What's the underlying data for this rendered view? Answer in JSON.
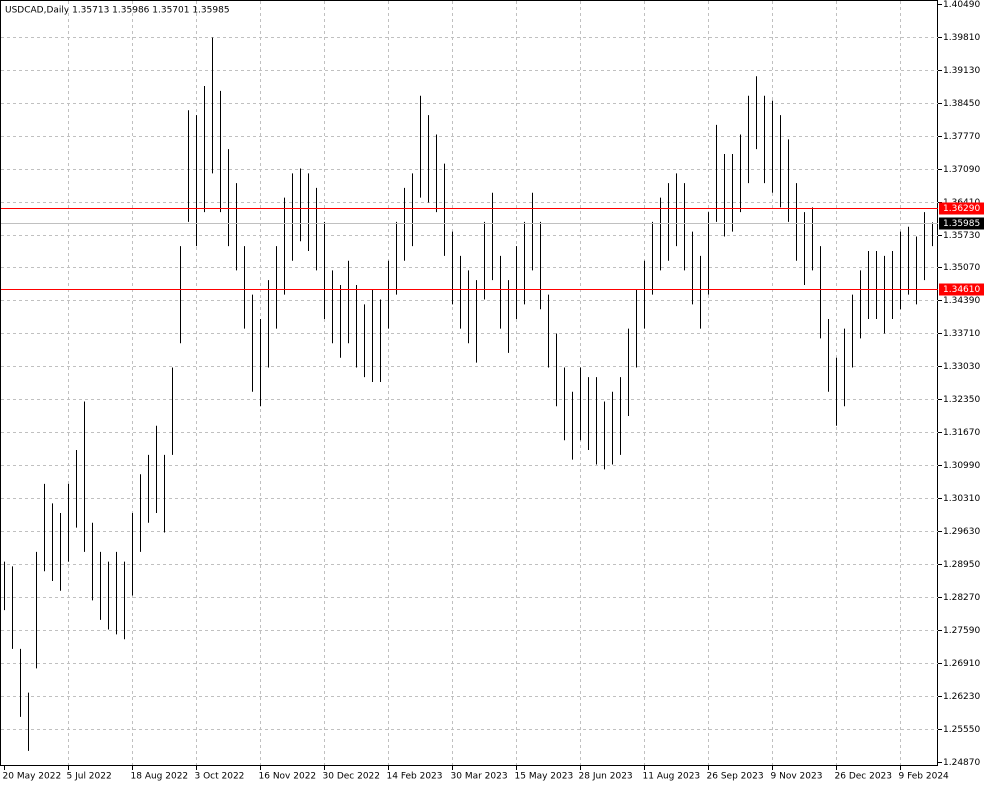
{
  "chart_data": {
    "type": "ohlc",
    "title": "USDCAD,Daily  1.35713 1.35986 1.35701 1.35985",
    "color": "#000000",
    "grid": true,
    "ylim": [
      1.2487,
      1.4049
    ],
    "yticks": [
      {
        "value": 1.4049,
        "label": "1.40490"
      },
      {
        "value": 1.3981,
        "label": "1.39810"
      },
      {
        "value": 1.3913,
        "label": "1.39130"
      },
      {
        "value": 1.3845,
        "label": "1.38450"
      },
      {
        "value": 1.3777,
        "label": "1.37770"
      },
      {
        "value": 1.3709,
        "label": "1.37090"
      },
      {
        "value": 1.3641,
        "label": "1.36410"
      },
      {
        "value": 1.3573,
        "label": "1.35730"
      },
      {
        "value": 1.3507,
        "label": "1.35070"
      },
      {
        "value": 1.3439,
        "label": "1.34390"
      },
      {
        "value": 1.3371,
        "label": "1.33710"
      },
      {
        "value": 1.3303,
        "label": "1.33030"
      },
      {
        "value": 1.3235,
        "label": "1.32350"
      },
      {
        "value": 1.3167,
        "label": "1.31670"
      },
      {
        "value": 1.3099,
        "label": "1.30990"
      },
      {
        "value": 1.3031,
        "label": "1.30310"
      },
      {
        "value": 1.2963,
        "label": "1.29630"
      },
      {
        "value": 1.2895,
        "label": "1.28950"
      },
      {
        "value": 1.2827,
        "label": "1.28270"
      },
      {
        "value": 1.2759,
        "label": "1.27590"
      },
      {
        "value": 1.2691,
        "label": "1.26910"
      },
      {
        "value": 1.2623,
        "label": "1.26230"
      },
      {
        "value": 1.2555,
        "label": "1.25550"
      },
      {
        "value": 1.2487,
        "label": "1.24870"
      }
    ],
    "levels": [
      {
        "value": 1.3629,
        "label": "1.36290",
        "color": "#ff0000"
      },
      {
        "value": 1.3461,
        "label": "1.34610",
        "color": "#ff0000"
      }
    ],
    "last": {
      "value": 1.35985,
      "label": "1.35985",
      "color": "#000000"
    },
    "categories": [
      "20 May 2022",
      null,
      null,
      null,
      null,
      null,
      null,
      null,
      "5 Jul 2022",
      null,
      null,
      null,
      null,
      null,
      null,
      null,
      "18 Aug 2022",
      null,
      null,
      null,
      null,
      null,
      null,
      null,
      "3 Oct 2022",
      null,
      null,
      null,
      null,
      null,
      null,
      null,
      "16 Nov 2022",
      null,
      null,
      null,
      null,
      null,
      null,
      null,
      "30 Dec 2022",
      null,
      null,
      null,
      null,
      null,
      null,
      null,
      "14 Feb 2023",
      null,
      null,
      null,
      null,
      null,
      null,
      null,
      "30 Mar 2023",
      null,
      null,
      null,
      null,
      null,
      null,
      null,
      "15 May 2023",
      null,
      null,
      null,
      null,
      null,
      null,
      null,
      "28 Jun 2023",
      null,
      null,
      null,
      null,
      null,
      null,
      null,
      "11 Aug 2023",
      null,
      null,
      null,
      null,
      null,
      null,
      null,
      "26 Sep 2023",
      null,
      null,
      null,
      null,
      null,
      null,
      null,
      "9 Nov 2023",
      null,
      null,
      null,
      null,
      null,
      null,
      null,
      "26 Dec 2023",
      null,
      null,
      null,
      null,
      null,
      null,
      null,
      "9 Feb 2024",
      null,
      null,
      null,
      null
    ],
    "high": [
      1.29,
      1.289,
      1.272,
      1.263,
      1.292,
      1.306,
      1.302,
      1.3,
      1.306,
      1.313,
      1.323,
      1.298,
      1.292,
      1.29,
      1.292,
      1.29,
      1.3,
      1.308,
      1.312,
      1.318,
      1.312,
      1.33,
      1.355,
      1.383,
      1.382,
      1.388,
      1.398,
      1.387,
      1.375,
      1.368,
      1.355,
      1.345,
      1.34,
      1.348,
      1.355,
      1.365,
      1.37,
      1.371,
      1.37,
      1.367,
      1.36,
      1.35,
      1.347,
      1.352,
      1.347,
      1.343,
      1.346,
      1.344,
      1.352,
      1.36,
      1.367,
      1.37,
      1.386,
      1.382,
      1.378,
      1.372,
      1.358,
      1.353,
      1.35,
      1.348,
      1.36,
      1.366,
      1.353,
      1.348,
      1.355,
      1.36,
      1.366,
      1.36,
      1.345,
      1.337,
      1.33,
      1.325,
      1.33,
      1.328,
      1.328,
      1.323,
      1.325,
      1.328,
      1.338,
      1.346,
      1.352,
      1.36,
      1.365,
      1.368,
      1.37,
      1.368,
      1.358,
      1.353,
      1.362,
      1.38,
      1.374,
      1.374,
      1.378,
      1.386,
      1.39,
      1.386,
      1.385,
      1.382,
      1.377,
      1.368,
      1.362,
      1.363,
      1.355,
      1.34,
      1.332,
      1.338,
      1.345,
      1.35,
      1.354,
      1.354,
      1.353,
      1.354,
      1.358,
      1.359,
      1.357,
      1.362,
      1.3599
    ],
    "low": [
      1.28,
      1.272,
      1.258,
      1.251,
      1.268,
      1.288,
      1.286,
      1.284,
      1.29,
      1.297,
      1.292,
      1.282,
      1.278,
      1.276,
      1.275,
      1.274,
      1.283,
      1.292,
      1.298,
      1.3,
      1.296,
      1.312,
      1.335,
      1.36,
      1.355,
      1.362,
      1.37,
      1.362,
      1.355,
      1.35,
      1.338,
      1.325,
      1.322,
      1.33,
      1.338,
      1.345,
      1.352,
      1.356,
      1.354,
      1.35,
      1.34,
      1.335,
      1.332,
      1.335,
      1.33,
      1.328,
      1.327,
      1.327,
      1.338,
      1.345,
      1.352,
      1.355,
      1.365,
      1.364,
      1.362,
      1.353,
      1.343,
      1.338,
      1.335,
      1.331,
      1.344,
      1.348,
      1.338,
      1.333,
      1.34,
      1.343,
      1.35,
      1.342,
      1.33,
      1.322,
      1.315,
      1.311,
      1.315,
      1.313,
      1.31,
      1.309,
      1.31,
      1.312,
      1.32,
      1.33,
      1.338,
      1.345,
      1.35,
      1.352,
      1.355,
      1.35,
      1.343,
      1.338,
      1.345,
      1.36,
      1.357,
      1.358,
      1.362,
      1.368,
      1.375,
      1.368,
      1.366,
      1.363,
      1.36,
      1.352,
      1.347,
      1.35,
      1.336,
      1.325,
      1.318,
      1.322,
      1.33,
      1.336,
      1.34,
      1.34,
      1.337,
      1.34,
      1.342,
      1.345,
      1.343,
      1.348,
      1.355
    ]
  }
}
